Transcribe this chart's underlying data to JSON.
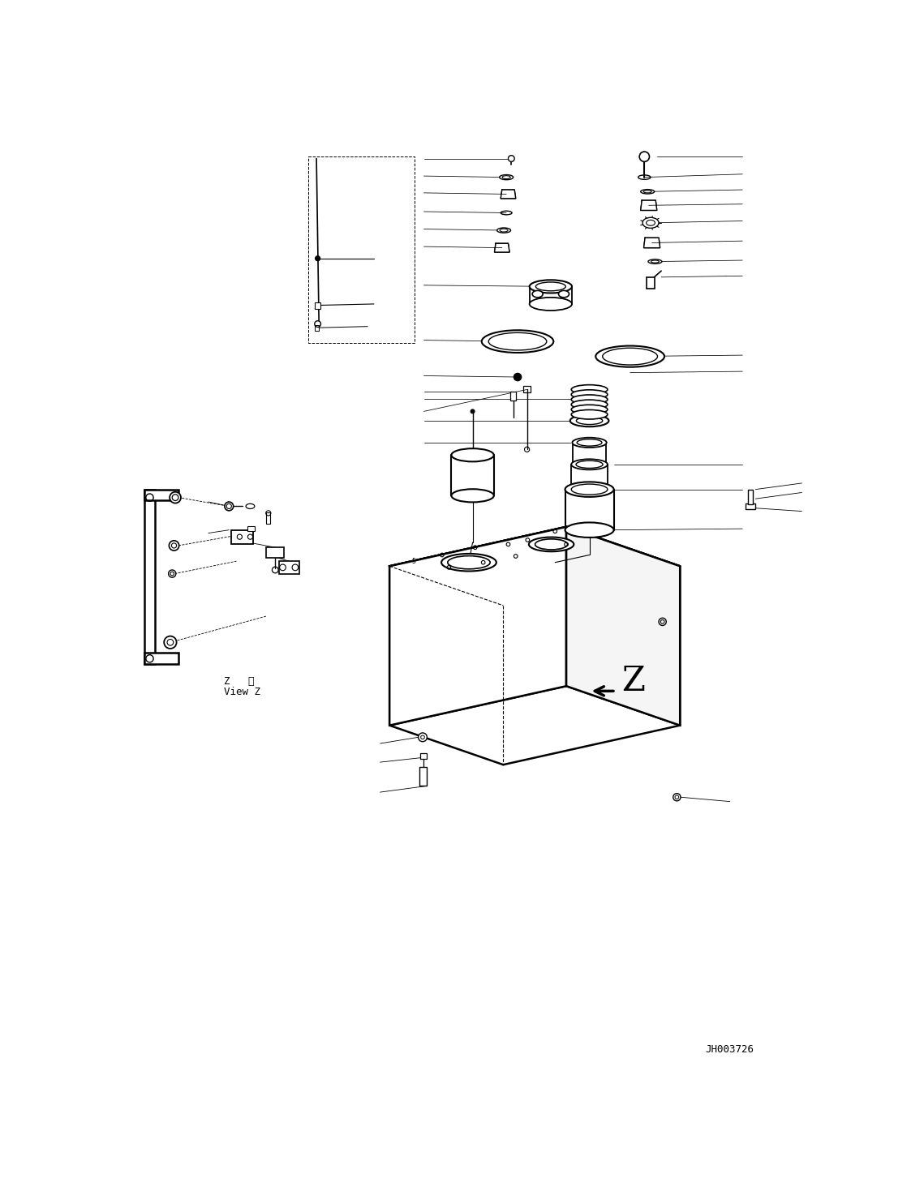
{
  "bg_color": "#ffffff",
  "line_color": "#000000",
  "fig_width": 11.39,
  "fig_height": 14.69,
  "dpi": 100,
  "part_code": "JH003726",
  "view_label_jp": "Z   視",
  "view_label_en": "View Z"
}
